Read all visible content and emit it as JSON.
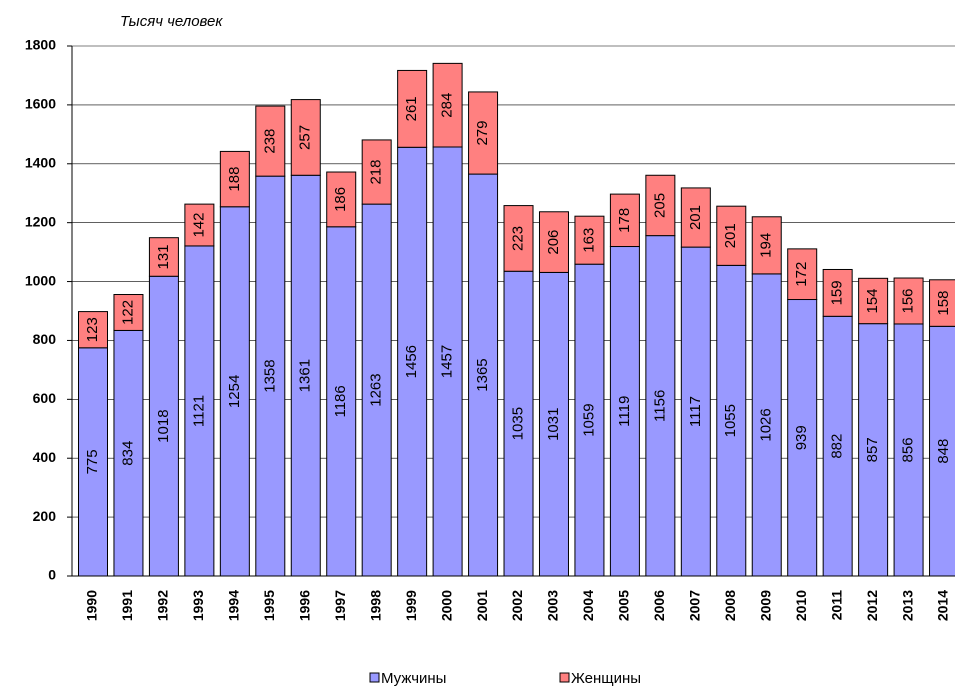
{
  "chart_data": {
    "type": "stacked_bar",
    "y_label": "Тысяч человек",
    "categories": [
      "1990",
      "1991",
      "1992",
      "1993",
      "1994",
      "1995",
      "1996",
      "1997",
      "1998",
      "1999",
      "2000",
      "2001",
      "2002",
      "2003",
      "2004",
      "2005",
      "2006",
      "2007",
      "2008",
      "2009",
      "2010",
      "2011",
      "2012",
      "2013",
      "2014"
    ],
    "series": [
      {
        "name": "Мужчины",
        "color": "#9999ff",
        "values": [
          775,
          834,
          1018,
          1121,
          1254,
          1358,
          1361,
          1186,
          1263,
          1456,
          1457,
          1365,
          1035,
          1031,
          1059,
          1119,
          1156,
          1117,
          1055,
          1026,
          939,
          882,
          857,
          856,
          848
        ]
      },
      {
        "name": "Женщины",
        "color": "#ff8080",
        "values": [
          123,
          122,
          131,
          142,
          188,
          238,
          257,
          186,
          218,
          261,
          284,
          279,
          223,
          206,
          163,
          178,
          205,
          201,
          201,
          194,
          172,
          159,
          154,
          156,
          158
        ]
      }
    ],
    "ylim": [
      0,
      1800
    ],
    "yticks": [
      0,
      200,
      400,
      600,
      800,
      1000,
      1200,
      1400,
      1600,
      1800
    ],
    "grid": true
  }
}
